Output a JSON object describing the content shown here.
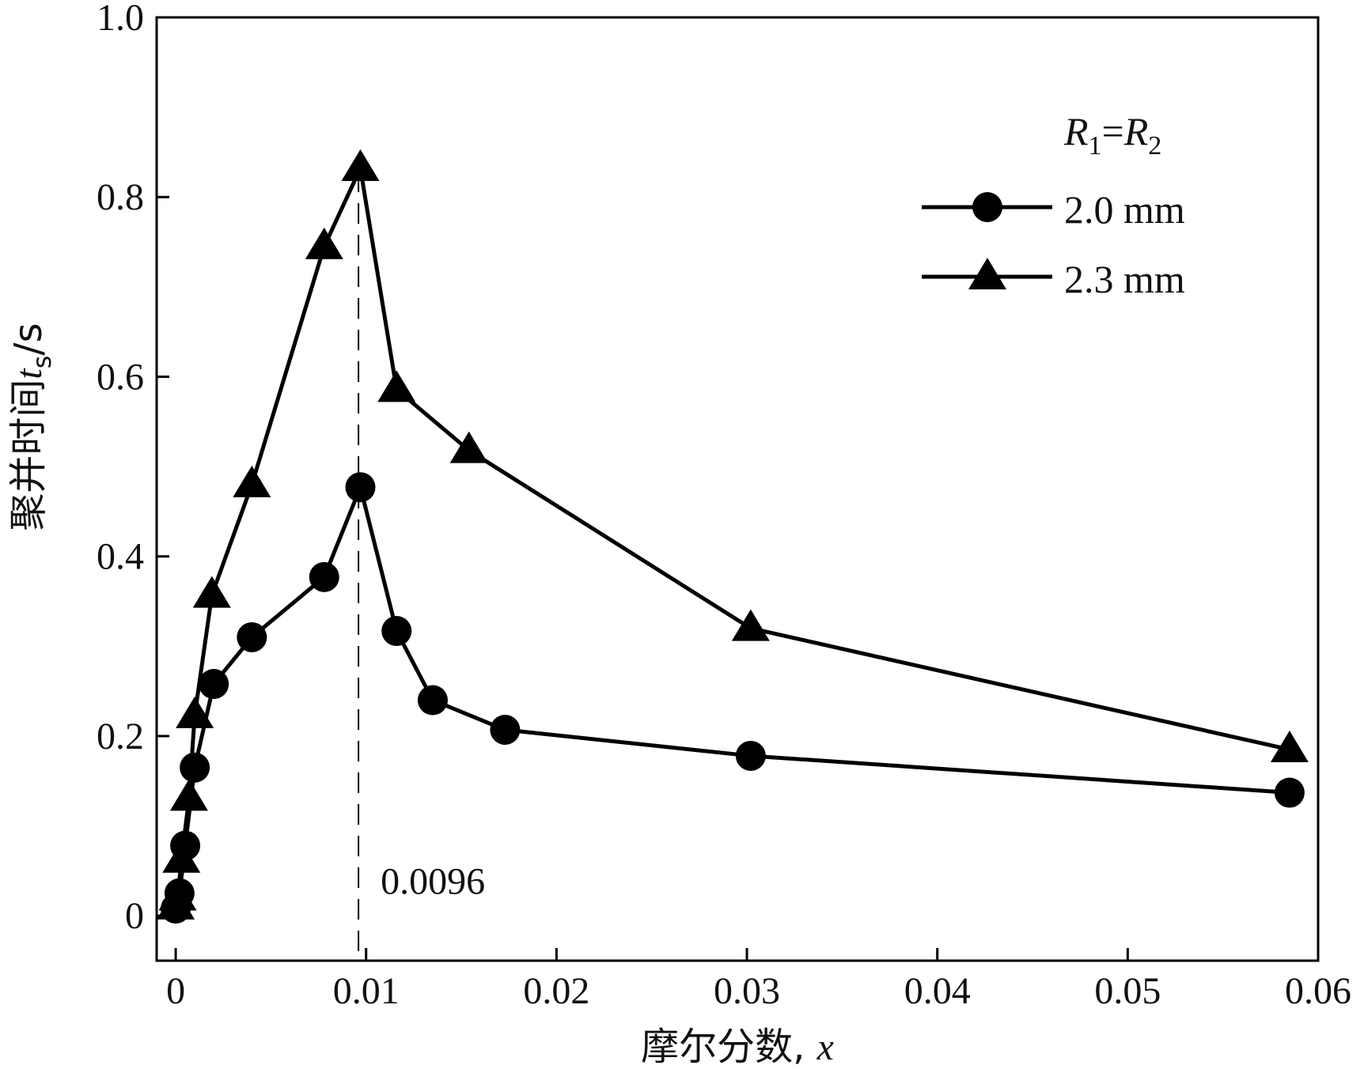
{
  "chart_data": {
    "type": "line",
    "title": "",
    "xlabel_text": "摩尔分数, ",
    "xlabel_var": "x",
    "ylabel_text": "聚并时间",
    "ylabel_var": "t",
    "ylabel_sub": "s",
    "ylabel_unit": "/s",
    "xlim": [
      -0.001,
      0.06
    ],
    "ylim": [
      -0.05,
      1.0
    ],
    "xticks": [
      0,
      0.01,
      0.02,
      0.03,
      0.04,
      0.05,
      0.06
    ],
    "xtick_labels": [
      "0",
      "0.01",
      "0.02",
      "0.03",
      "0.04",
      "0.05",
      "0.06"
    ],
    "yticks": [
      0,
      0.2,
      0.4,
      0.6,
      0.8,
      1.0
    ],
    "ytick_labels": [
      "0",
      "0.2",
      "0.4",
      "0.6",
      "0.8",
      "1.0"
    ],
    "grid": false,
    "legend": {
      "placement": "top-right",
      "title_var1": "R",
      "title_sub1": "1",
      "title_eq": "=",
      "title_var2": "R",
      "title_sub2": "2"
    },
    "series": [
      {
        "name": "2.0 mm",
        "marker": "circle",
        "x": [
          0,
          0.0002,
          0.0005,
          0.001,
          0.002,
          0.004,
          0.0078,
          0.0097,
          0.0116,
          0.0135,
          0.0173,
          0.0302,
          0.0585
        ],
        "y": [
          0.008,
          0.025,
          0.078,
          0.165,
          0.258,
          0.31,
          0.377,
          0.477,
          0.317,
          0.24,
          0.207,
          0.178,
          0.137
        ]
      },
      {
        "name": "2.3 mm",
        "marker": "triangle",
        "x": [
          0,
          0.0001,
          0.0003,
          0.0007,
          0.001,
          0.0019,
          0.004,
          0.0078,
          0.0097,
          0.0116,
          0.0154,
          0.0302,
          0.0585
        ],
        "y": [
          0.01,
          0.02,
          0.062,
          0.131,
          0.223,
          0.357,
          0.48,
          0.745,
          0.832,
          0.586,
          0.518,
          0.32,
          0.185
        ]
      }
    ],
    "annotation": {
      "label": "0.0096",
      "x": 0.0096
    },
    "color": "#000000"
  }
}
